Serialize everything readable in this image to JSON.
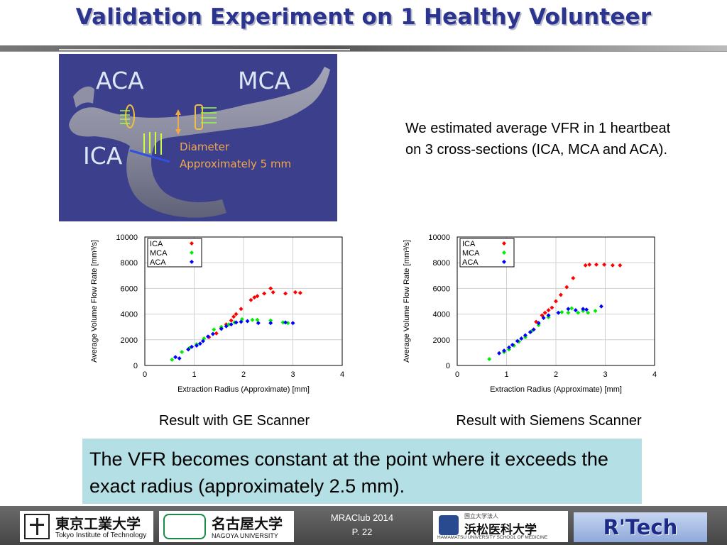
{
  "slide": {
    "title": "Validation Experiment on 1 Healthy Volunteer",
    "note": "We estimated average VFR in 1 heartbeat on 3 cross-sections (ICA, MCA and ACA).",
    "conclusion": "The VFR becomes constant at the point where it exceeds the exact radius (approximately 2.5 mm).",
    "image_labels": {
      "aca": "ACA",
      "mca": "MCA",
      "ica": "ICA",
      "diameter_line1": "Diameter",
      "diameter_line2": "Approximately 5 mm"
    },
    "captions": {
      "ge": "Result with GE Scanner",
      "siemens": "Result with Siemens Scanner"
    }
  },
  "footer": {
    "credit_line1": "MRAClub 2014",
    "credit_line2": "P. 22",
    "logos": {
      "tokyo": "東京工業大学",
      "tokyo_en": "Tokyo Institute of Technology",
      "nagoya": "名古屋大学",
      "nagoya_en": "NAGOYA UNIVERSITY",
      "hamamatsu": "浜松医科大学",
      "hamamatsu_sub": "国立大学法人",
      "hamamatsu_en": "HAMAMATSU UNIVERSITY SCHOOL OF MEDICINE",
      "rtech": "R'Tech"
    }
  },
  "colors": {
    "ica": "#ff0000",
    "mca": "#00ee00",
    "aca": "#0000ff",
    "title": "#2b3590",
    "conclusion_bg": "#b3dfe5"
  },
  "chart_data": [
    {
      "type": "scatter",
      "id": "ge",
      "xlabel": "Extraction Radius (Approximate) [mm]",
      "ylabel": "Average Volume Flow Rate [mm³/s]",
      "xlim": [
        0,
        4
      ],
      "ylim": [
        0,
        10000
      ],
      "xticks": [
        0,
        1,
        2,
        3,
        4
      ],
      "yticks": [
        0,
        2000,
        4000,
        6000,
        8000,
        10000
      ],
      "grid": true,
      "legend": "top-left",
      "series": [
        {
          "name": "ICA",
          "color": "#ff0000",
          "points": [
            [
              1.3,
              2200
            ],
            [
              1.45,
              2500
            ],
            [
              1.55,
              2900
            ],
            [
              1.65,
              3200
            ],
            [
              1.75,
              3500
            ],
            [
              1.8,
              3800
            ],
            [
              1.85,
              4000
            ],
            [
              1.95,
              4400
            ],
            [
              2.15,
              5100
            ],
            [
              2.22,
              5300
            ],
            [
              2.28,
              5400
            ],
            [
              2.42,
              5600
            ],
            [
              2.55,
              6000
            ],
            [
              2.6,
              5700
            ],
            [
              2.85,
              5600
            ],
            [
              3.05,
              5700
            ],
            [
              3.15,
              5650
            ]
          ]
        },
        {
          "name": "MCA",
          "color": "#00ee00",
          "points": [
            [
              0.55,
              450
            ],
            [
              0.75,
              1050
            ],
            [
              0.9,
              1350
            ],
            [
              1.05,
              1650
            ],
            [
              1.2,
              2100
            ],
            [
              1.4,
              2800
            ],
            [
              1.55,
              3000
            ],
            [
              1.7,
              3200
            ],
            [
              1.82,
              3350
            ],
            [
              1.97,
              3600
            ],
            [
              2.18,
              3550
            ],
            [
              2.28,
              3550
            ],
            [
              2.55,
              3500
            ],
            [
              2.8,
              3350
            ],
            [
              2.9,
              3300
            ]
          ]
        },
        {
          "name": "ACA",
          "color": "#0000ff",
          "points": [
            [
              0.62,
              650
            ],
            [
              0.7,
              550
            ],
            [
              0.88,
              1250
            ],
            [
              0.95,
              1450
            ],
            [
              1.05,
              1550
            ],
            [
              1.12,
              1700
            ],
            [
              1.18,
              1900
            ],
            [
              1.28,
              2250
            ],
            [
              1.38,
              2450
            ],
            [
              1.55,
              2850
            ],
            [
              1.65,
              3050
            ],
            [
              1.75,
              3200
            ],
            [
              1.85,
              3350
            ],
            [
              1.95,
              3400
            ],
            [
              2.08,
              3450
            ],
            [
              2.3,
              3300
            ],
            [
              2.55,
              3300
            ],
            [
              2.85,
              3350
            ],
            [
              3.0,
              3300
            ]
          ]
        }
      ]
    },
    {
      "type": "scatter",
      "id": "siemens",
      "xlabel": "Extraction Radius (Approximate) [mm]",
      "ylabel": "Average Volume Flow Rate [mm³/s]",
      "xlim": [
        0,
        4
      ],
      "ylim": [
        0,
        10000
      ],
      "xticks": [
        0,
        1,
        2,
        3,
        4
      ],
      "yticks": [
        0,
        2000,
        4000,
        6000,
        8000,
        10000
      ],
      "grid": true,
      "legend": "top-left",
      "series": [
        {
          "name": "ICA",
          "color": "#ff0000",
          "points": [
            [
              1.6,
              3400
            ],
            [
              1.72,
              3900
            ],
            [
              1.78,
              4100
            ],
            [
              1.85,
              4300
            ],
            [
              1.92,
              4500
            ],
            [
              2.0,
              5000
            ],
            [
              2.1,
              5500
            ],
            [
              2.22,
              6100
            ],
            [
              2.35,
              6800
            ],
            [
              2.6,
              7800
            ],
            [
              2.68,
              7850
            ],
            [
              2.82,
              7850
            ],
            [
              2.98,
              7850
            ],
            [
              3.15,
              7800
            ],
            [
              3.3,
              7800
            ]
          ]
        },
        {
          "name": "MCA",
          "color": "#00ee00",
          "points": [
            [
              0.65,
              500
            ],
            [
              0.95,
              1050
            ],
            [
              1.05,
              1250
            ],
            [
              1.15,
              1550
            ],
            [
              1.25,
              1850
            ],
            [
              1.38,
              2200
            ],
            [
              1.5,
              2650
            ],
            [
              1.65,
              3150
            ],
            [
              1.85,
              3750
            ],
            [
              2.12,
              4150
            ],
            [
              2.25,
              4100
            ],
            [
              2.32,
              4450
            ],
            [
              2.45,
              4100
            ],
            [
              2.55,
              4250
            ],
            [
              2.65,
              4100
            ],
            [
              2.8,
              4250
            ]
          ]
        },
        {
          "name": "ACA",
          "color": "#0000ff",
          "points": [
            [
              0.85,
              950
            ],
            [
              0.95,
              1150
            ],
            [
              1.05,
              1400
            ],
            [
              1.12,
              1600
            ],
            [
              1.22,
              1900
            ],
            [
              1.3,
              2100
            ],
            [
              1.38,
              2350
            ],
            [
              1.48,
              2600
            ],
            [
              1.55,
              2800
            ],
            [
              1.65,
              3300
            ],
            [
              1.75,
              3700
            ],
            [
              1.85,
              3900
            ],
            [
              2.05,
              4100
            ],
            [
              2.25,
              4400
            ],
            [
              2.4,
              4300
            ],
            [
              2.55,
              4400
            ],
            [
              2.62,
              4350
            ],
            [
              2.92,
              4600
            ]
          ]
        }
      ]
    }
  ]
}
